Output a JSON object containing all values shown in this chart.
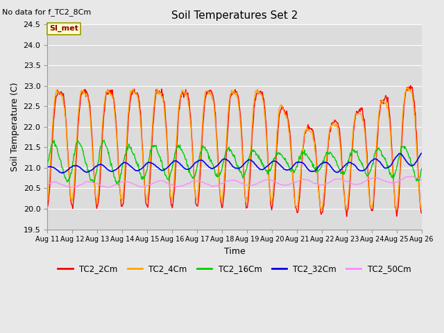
{
  "title": "Soil Temperatures Set 2",
  "xlabel": "Time",
  "ylabel": "Soil Temperature (C)",
  "top_left_note": "No data for f_TC2_8Cm",
  "legend_label": "SI_met",
  "ylim": [
    19.5,
    24.5
  ],
  "x_tick_labels": [
    "Aug 11",
    "Aug 12",
    "Aug 13",
    "Aug 14",
    "Aug 15",
    "Aug 16",
    "Aug 17",
    "Aug 18",
    "Aug 19",
    "Aug 20",
    "Aug 21",
    "Aug 22",
    "Aug 23",
    "Aug 24",
    "Aug 25",
    "Aug 26"
  ],
  "series": [
    {
      "name": "TC2_2Cm",
      "color": "#FF0000",
      "linewidth": 1.0
    },
    {
      "name": "TC2_4Cm",
      "color": "#FFA500",
      "linewidth": 1.0
    },
    {
      "name": "TC2_16Cm",
      "color": "#00CC00",
      "linewidth": 1.0
    },
    {
      "name": "TC2_32Cm",
      "color": "#0000EE",
      "linewidth": 1.2
    },
    {
      "name": "TC2_50Cm",
      "color": "#FF88FF",
      "linewidth": 1.0
    }
  ],
  "bg_color": "#E8E8E8",
  "plot_bg_color": "#DCDCDC",
  "legend_box_color": "#FFFFCC",
  "legend_box_edge": "#999900",
  "yticks": [
    19.5,
    20.0,
    20.5,
    21.0,
    21.5,
    22.0,
    22.5,
    23.0,
    23.5,
    24.0,
    24.5
  ]
}
